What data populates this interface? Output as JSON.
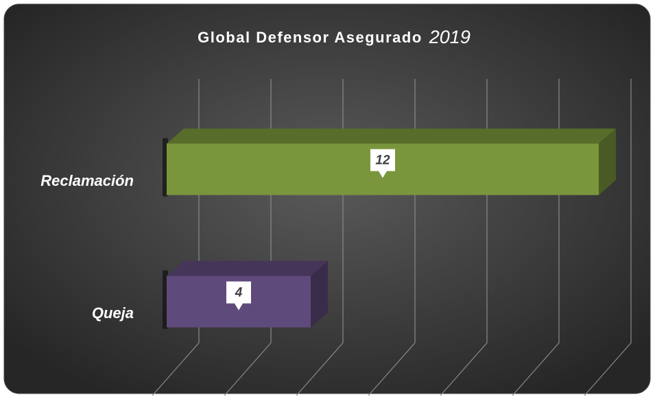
{
  "chart_data": {
    "type": "bar3d_horizontal",
    "title": "Global Defensor Asegurado",
    "title_year": "2019",
    "categories": [
      "Reclamación",
      "Queja"
    ],
    "series": [
      {
        "name": "Global",
        "colors": [
          "#7a963c",
          "#5f4a7c"
        ],
        "values": [
          12,
          4
        ]
      }
    ],
    "xlim": [
      0,
      12
    ],
    "xticks": [
      0,
      2,
      4,
      6,
      8,
      10,
      12
    ],
    "grid": true
  }
}
